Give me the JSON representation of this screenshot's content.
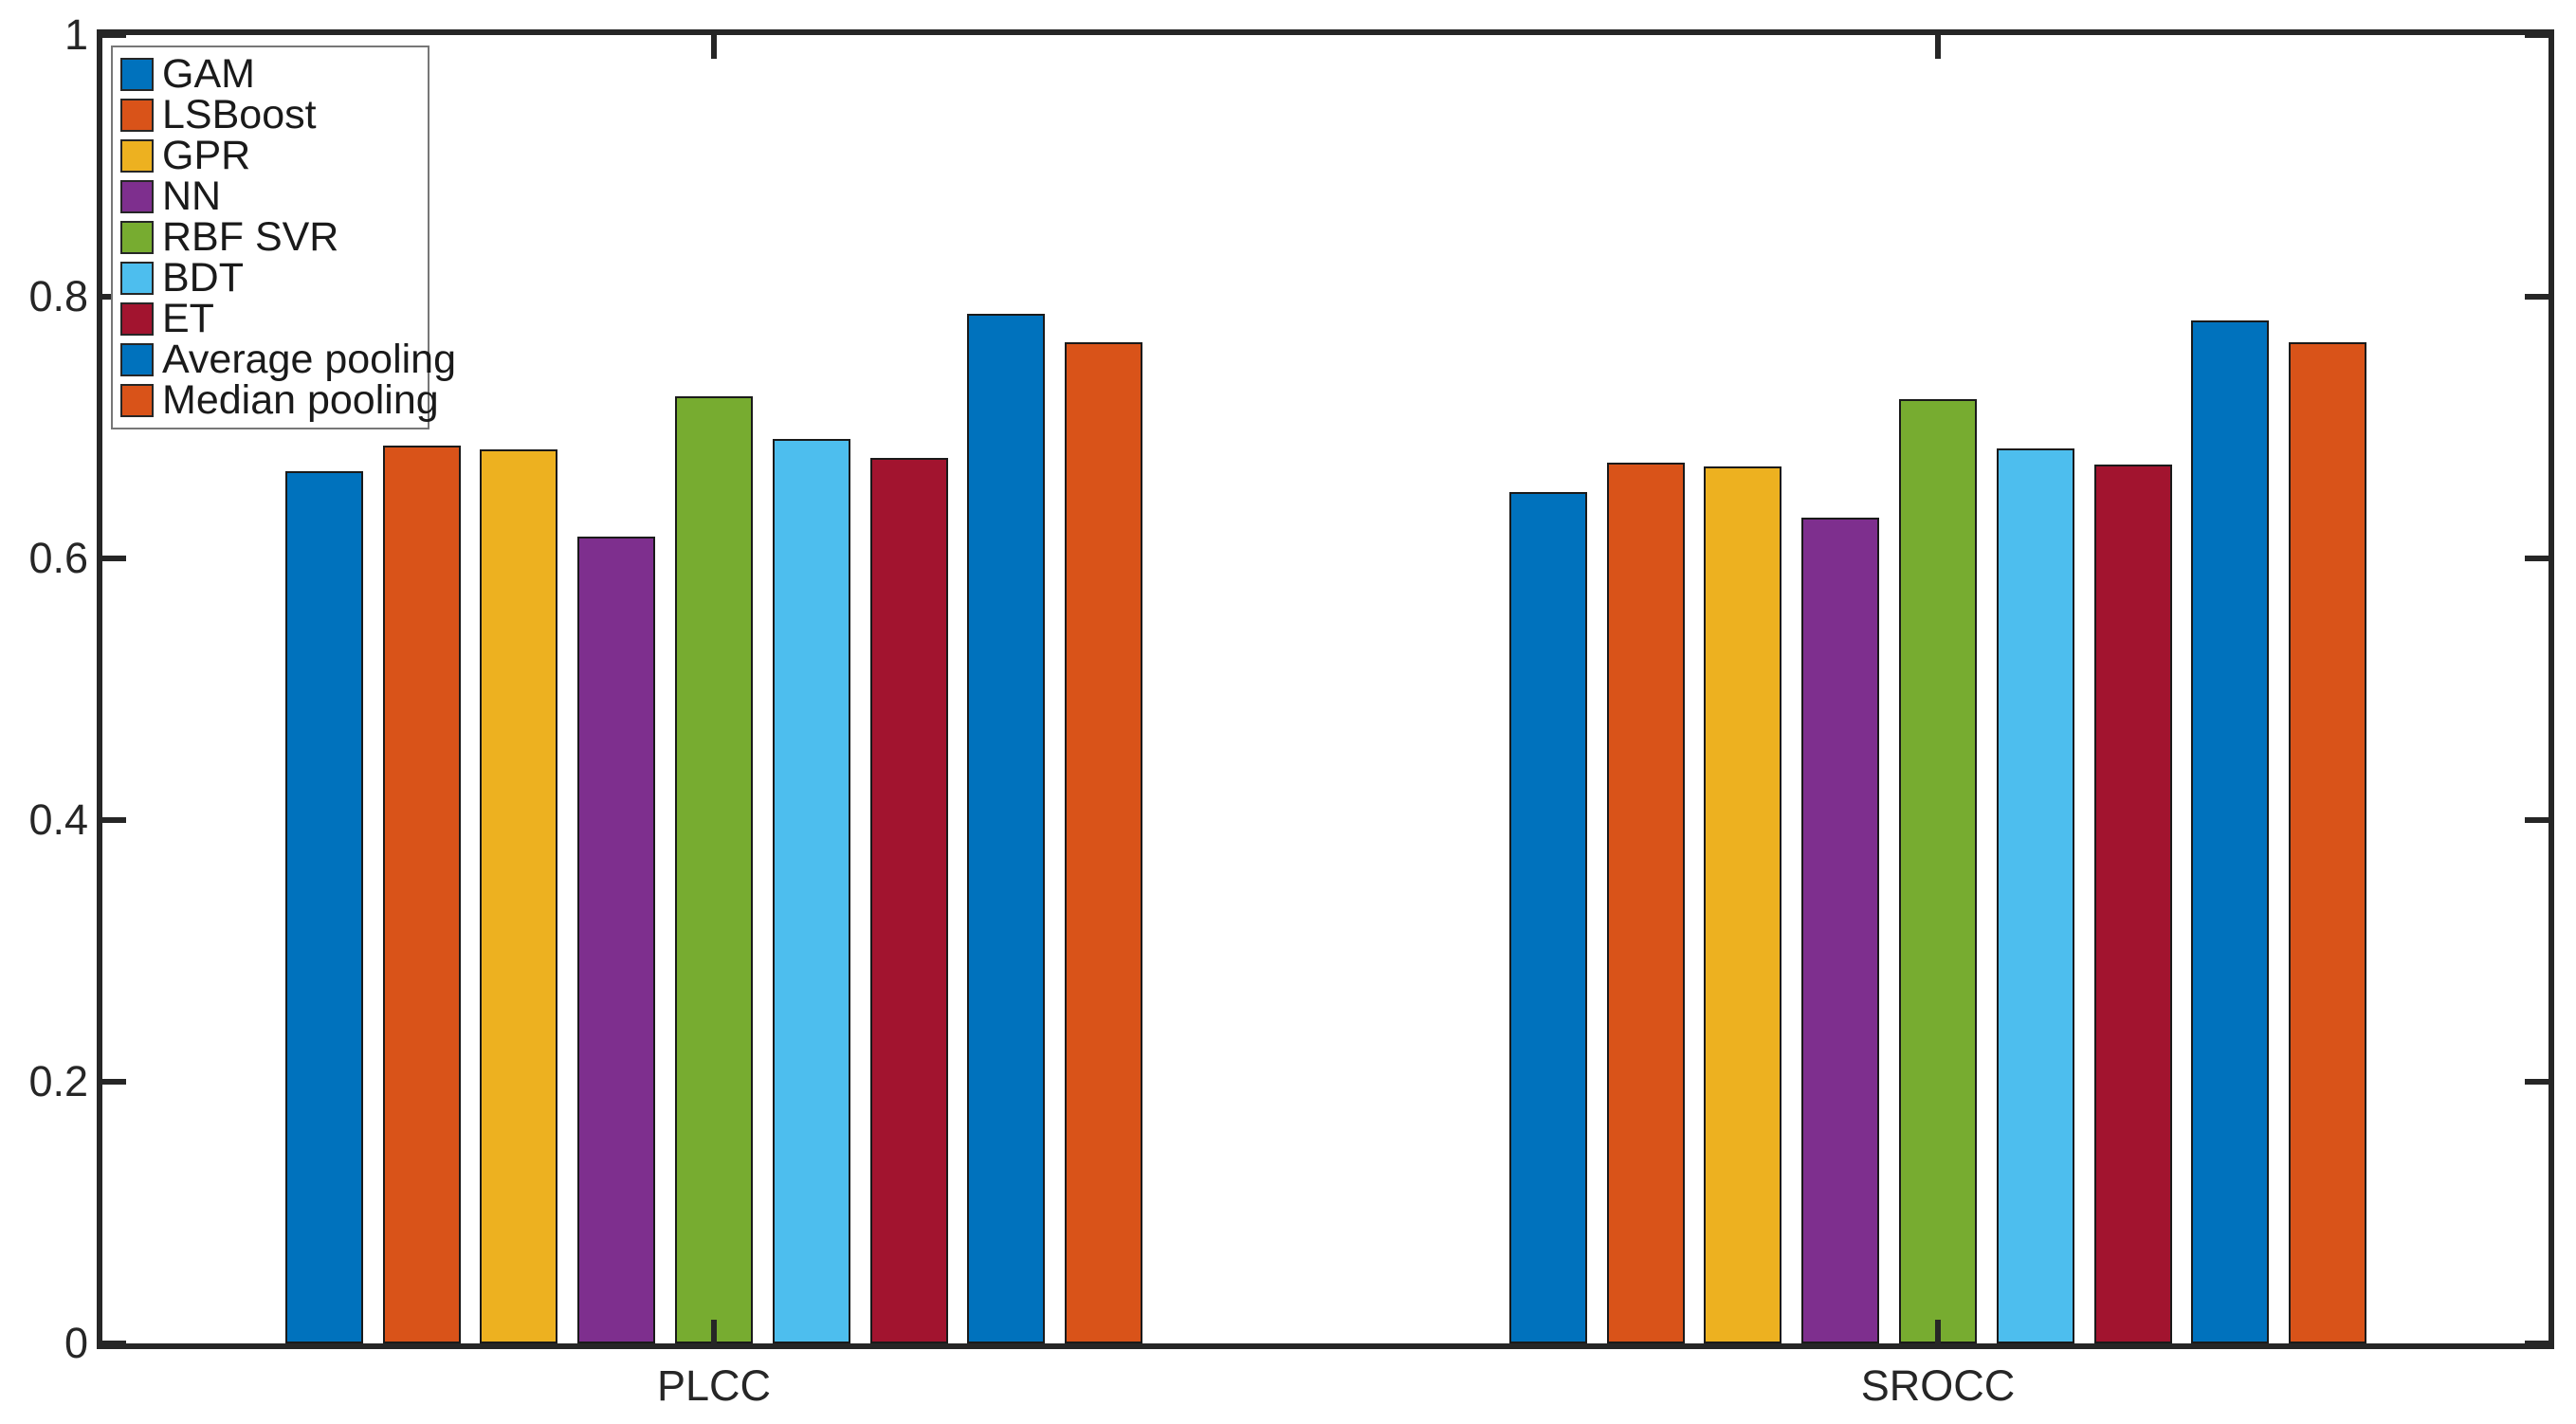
{
  "chart_data": {
    "type": "bar",
    "title": "",
    "xlabel": "",
    "ylabel": "",
    "categories": [
      "PLCC",
      "SROCC"
    ],
    "series": [
      {
        "name": "GAM",
        "color": "#0072BD",
        "values": [
          0.667,
          0.651
        ]
      },
      {
        "name": "LSBoost",
        "color": "#D95319",
        "values": [
          0.686,
          0.673
        ]
      },
      {
        "name": "GPR",
        "color": "#EDB120",
        "values": [
          0.683,
          0.67
        ]
      },
      {
        "name": "NN",
        "color": "#7E2F8E",
        "values": [
          0.617,
          0.631
        ]
      },
      {
        "name": "RBF SVR",
        "color": "#77AC30",
        "values": [
          0.724,
          0.722
        ]
      },
      {
        "name": "BDT",
        "color": "#4DBEEE",
        "values": [
          0.691,
          0.684
        ]
      },
      {
        "name": "ET",
        "color": "#A2142F",
        "values": [
          0.677,
          0.672
        ]
      },
      {
        "name": "Average pooling",
        "color": "#0072BD",
        "values": [
          0.787,
          0.782
        ]
      },
      {
        "name": "Median pooling",
        "color": "#D95319",
        "values": [
          0.765,
          0.765
        ]
      }
    ],
    "ylim": [
      0,
      1
    ],
    "y_ticks": [
      {
        "value": 0,
        "label": "0"
      },
      {
        "value": 0.2,
        "label": "0.2"
      },
      {
        "value": 0.4,
        "label": "0.4"
      },
      {
        "value": 0.6,
        "label": "0.6"
      },
      {
        "value": 0.8,
        "label": "0.8"
      },
      {
        "value": 1,
        "label": "1"
      }
    ],
    "grid": false,
    "legend_position": "top-left",
    "axis_color": "#262626",
    "bar_edge_color": "#1a1a1a",
    "background": "#FFFFFF"
  }
}
